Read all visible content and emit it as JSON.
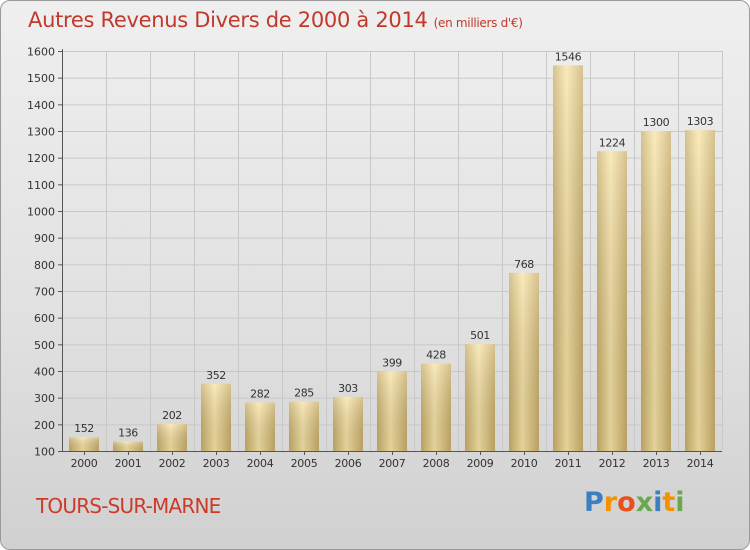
{
  "title": "Autres Revenus Divers de 2000 à 2014",
  "title_unit": "(en milliers d'€)",
  "place_name": "TOURS-SUR-MARNE",
  "logo": {
    "text": "Proxiti",
    "letters": [
      "P",
      "r",
      "o",
      "x",
      "i",
      "t",
      "i"
    ],
    "colors": [
      "#3a7fc1",
      "#f39200",
      "#e94e1b",
      "#6aa84f",
      "#3a7fc1",
      "#f39200",
      "#6aa84f"
    ]
  },
  "chart_data": {
    "type": "bar",
    "categories": [
      "2000",
      "2001",
      "2002",
      "2003",
      "2004",
      "2005",
      "2006",
      "2007",
      "2008",
      "2009",
      "2010",
      "2011",
      "2012",
      "2013",
      "2014"
    ],
    "values": [
      152,
      136,
      202,
      352,
      282,
      285,
      303,
      399,
      428,
      501,
      768,
      1546,
      1224,
      1300,
      1303
    ],
    "value_labels": [
      "152",
      "136",
      "202",
      "352",
      "282",
      "285",
      "303",
      "399",
      "428",
      "501",
      "768",
      "1546",
      "1224",
      "1300",
      "1303"
    ],
    "ylim": [
      100,
      1600
    ],
    "yticks": [
      "100",
      "200",
      "300",
      "400",
      "500",
      "600",
      "700",
      "800",
      "900",
      "1000",
      "1100",
      "1200",
      "1300",
      "1400",
      "1500",
      "1600"
    ],
    "grid": true,
    "colors": {
      "bar_light": "#f8e4a6",
      "bar_dark": "#c9ae6a",
      "grid": "#c8c8c8",
      "axis": "#555555",
      "text": "#333333"
    }
  }
}
